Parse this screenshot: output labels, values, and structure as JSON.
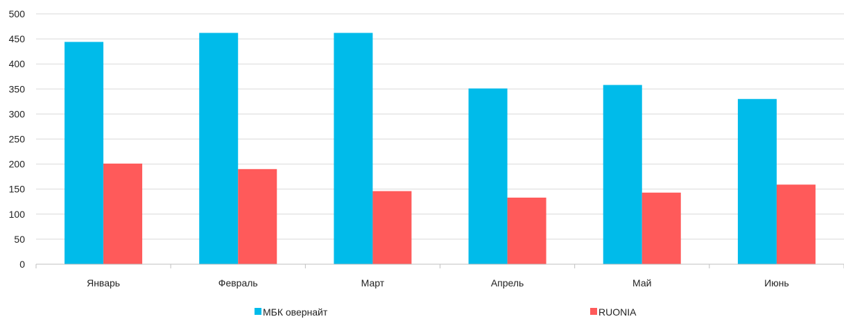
{
  "chart_data": {
    "type": "bar",
    "title": "",
    "xlabel": "",
    "ylabel": "",
    "categories": [
      "Январь",
      "Февраль",
      "Март",
      "Апрель",
      "Май",
      "Июнь"
    ],
    "series": [
      {
        "name": "МБК овернайт",
        "color": "#00BBEA",
        "values": [
          444,
          462,
          462,
          351,
          358,
          330
        ]
      },
      {
        "name": "RUONIA",
        "color": "#FF5A5A",
        "values": [
          201,
          190,
          146,
          133,
          143,
          159
        ]
      }
    ],
    "ylim": [
      0,
      500
    ],
    "yticks": [
      "0",
      "50",
      "100",
      "150",
      "200",
      "250",
      "300",
      "350",
      "400",
      "450",
      "500"
    ],
    "grid": true,
    "legend_position": "bottom"
  }
}
